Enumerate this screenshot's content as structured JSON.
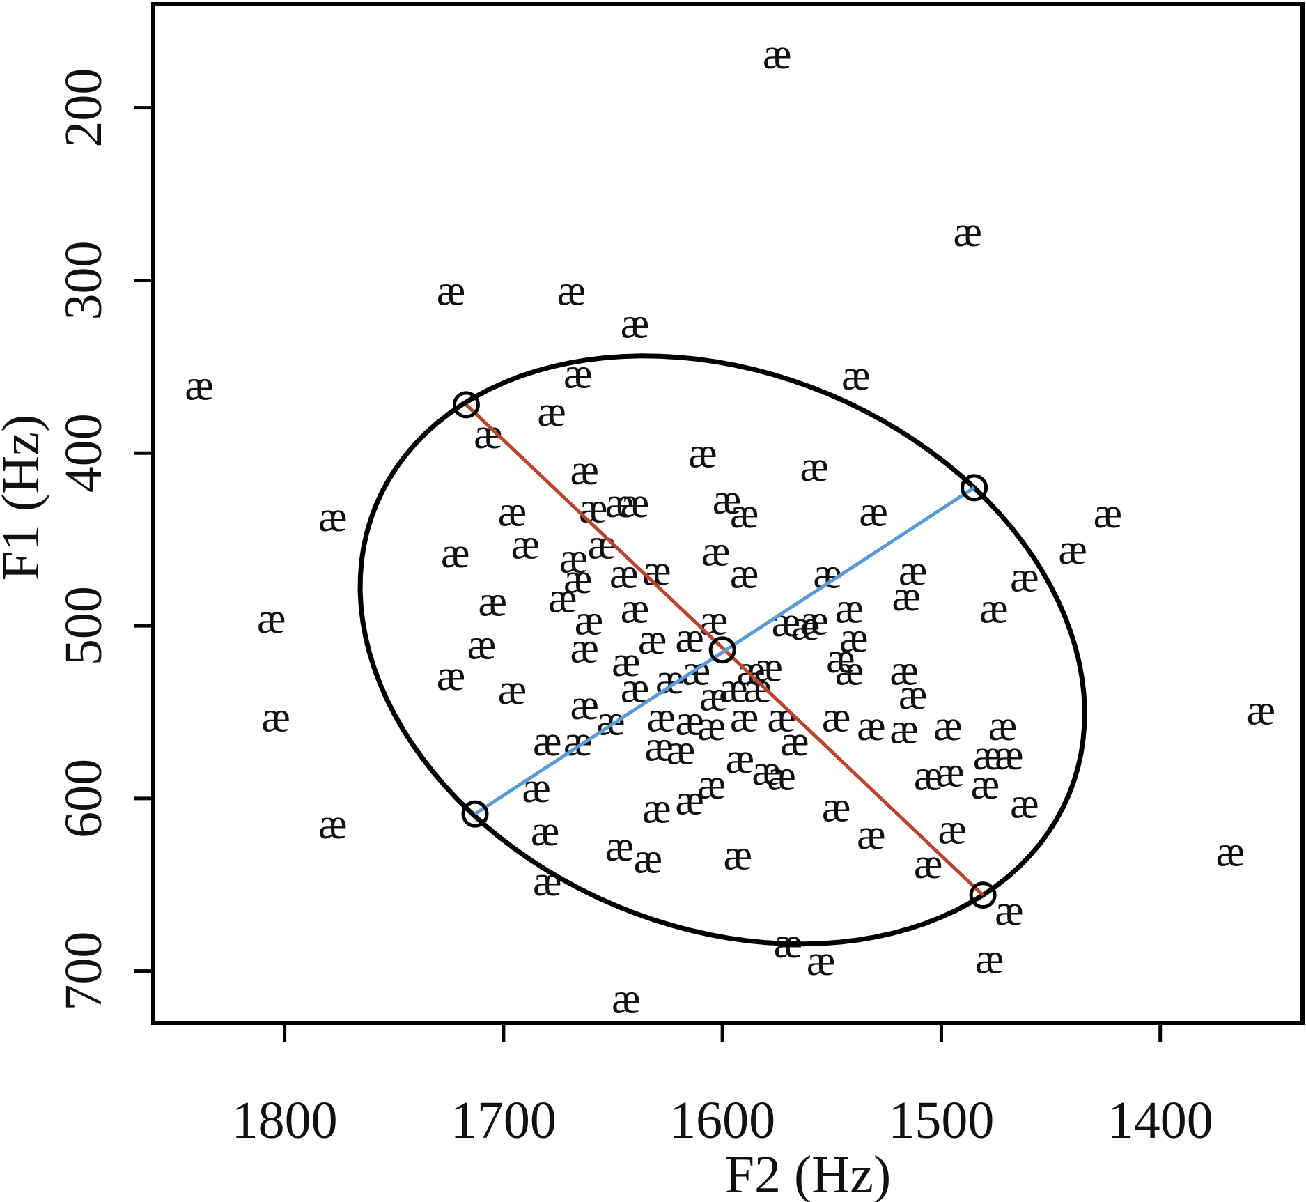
{
  "chart_data": {
    "type": "scatter",
    "x_label": "F2 (Hz)",
    "y_label": "F1 (Hz)",
    "marker": "æ",
    "xlim": [
      1335,
      1860
    ],
    "x_reversed": true,
    "ylim": [
      140,
      730
    ],
    "y_reversed": true,
    "xticks": [
      1800,
      1700,
      1600,
      1500,
      1400
    ],
    "yticks": [
      200,
      300,
      400,
      500,
      600,
      700
    ],
    "x": [
      1575,
      1488,
      1724,
      1669,
      1640,
      1839,
      1666,
      1539,
      1678,
      1707,
      1609,
      1558,
      1663,
      1778,
      1696,
      1659,
      1647,
      1640,
      1598,
      1590,
      1531,
      1424,
      1722,
      1690,
      1655,
      1668,
      1603,
      1440,
      1705,
      1666,
      1645,
      1630,
      1590,
      1552,
      1513,
      1462,
      1673,
      1516,
      1476,
      1640,
      1661,
      1806,
      1604,
      1571,
      1562,
      1542,
      1710,
      1663,
      1632,
      1615,
      1540,
      1644,
      1546,
      1724,
      1696,
      1624,
      1612,
      1587,
      1579,
      1542,
      1517,
      1513,
      1640,
      1663,
      1604,
      1595,
      1584,
      1804,
      1651,
      1628,
      1615,
      1605,
      1590,
      1573,
      1548,
      1532,
      1517,
      1497,
      1472,
      1680,
      1666,
      1629,
      1619,
      1567,
      1479,
      1469,
      1685,
      1592,
      1580,
      1573,
      1506,
      1496,
      1480,
      1605,
      1615,
      1630,
      1462,
      1548,
      1778,
      1681,
      1532,
      1495,
      1647,
      1634,
      1593,
      1506,
      1680,
      1368,
      1354,
      1469,
      1570,
      1555,
      1478,
      1644,
      1558
    ],
    "y": [
      169,
      272,
      306,
      306,
      325,
      361,
      354,
      355,
      376,
      389,
      400,
      408,
      410,
      437,
      434,
      432,
      429,
      429,
      427,
      435,
      434,
      435,
      458,
      453,
      453,
      461,
      457,
      456,
      486,
      473,
      470,
      468,
      470,
      470,
      468,
      472,
      484,
      483,
      490,
      490,
      497,
      496,
      497,
      498,
      500,
      490,
      511,
      513,
      508,
      507,
      507,
      521,
      519,
      529,
      537,
      531,
      526,
      526,
      524,
      526,
      526,
      540,
      536,
      546,
      541,
      536,
      536,
      553,
      555,
      553,
      555,
      558,
      553,
      553,
      553,
      558,
      560,
      558,
      558,
      567,
      567,
      570,
      572,
      567,
      575,
      575,
      594,
      577,
      584,
      587,
      587,
      585,
      592,
      592,
      601,
      606,
      603,
      605,
      615,
      619,
      621,
      618,
      628,
      635,
      633,
      638,
      648,
      631,
      549,
      665,
      684,
      694,
      693,
      716,
      497
    ],
    "ellipse": {
      "center": [
        1600,
        514
      ],
      "axis1": {
        "color": "#b9442f",
        "ends": [
          [
            1717,
            372
          ],
          [
            1481,
            656
          ]
        ]
      },
      "axis2": {
        "color": "#5b9bd5",
        "ends": [
          [
            1713,
            609
          ],
          [
            1485,
            420
          ]
        ]
      }
    }
  }
}
